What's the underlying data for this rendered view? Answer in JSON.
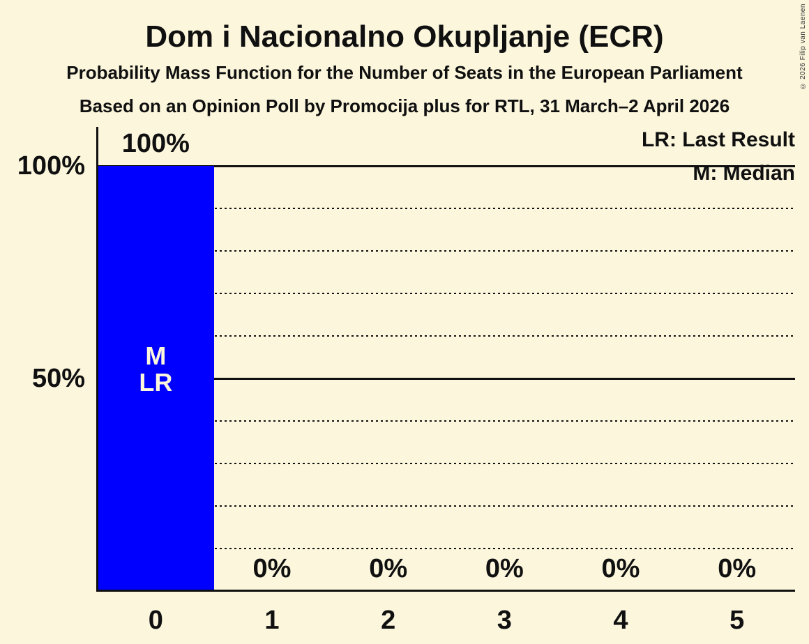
{
  "copyright": "© 2026 Filip van Laenen",
  "colors": {
    "background": "#FBF6DC",
    "bar": "#0000FF",
    "text": "#101010",
    "copyright_text": "#333333"
  },
  "chart_data": {
    "type": "bar",
    "title": "Dom i Nacionalno Okupljanje (ECR)",
    "subtitle": "Probability Mass Function for the Number of Seats in the European Parliament",
    "source_line": "Based on an Opinion Poll by Promocija plus for RTL, 31 March–2 April 2026",
    "categories": [
      "0",
      "1",
      "2",
      "3",
      "4",
      "5"
    ],
    "values": [
      100,
      0,
      0,
      0,
      0,
      0
    ],
    "value_labels": [
      "100%",
      "0%",
      "0%",
      "0%",
      "0%",
      "0%"
    ],
    "ylim": [
      0,
      100
    ],
    "y_ticks": [
      {
        "value": 100,
        "label": "100%"
      },
      {
        "value": 50,
        "label": "50%"
      }
    ],
    "solid_gridlines": [
      100,
      50
    ],
    "dotted_gridlines": [
      90,
      80,
      70,
      60,
      40,
      30,
      20,
      10
    ],
    "legend": {
      "lr": "LR: Last Result",
      "m": "M: Median"
    },
    "annotations": {
      "bar_index": 0,
      "lines": [
        "M",
        "LR"
      ]
    },
    "median_seats": 0,
    "last_result_seats": 0,
    "grid": "horizontal dotted every 10%, solid at 50% and 100%",
    "legend_position": "top-right"
  }
}
